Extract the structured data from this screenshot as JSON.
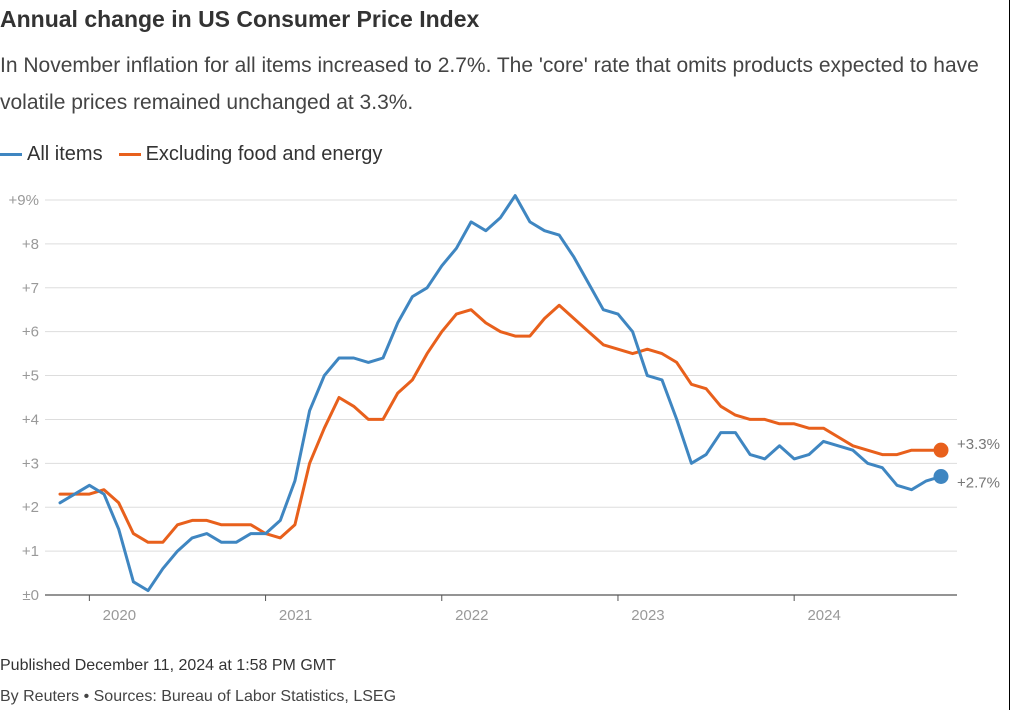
{
  "title": "Annual change in US Consumer Price Index",
  "subtitle": "In November inflation for all items increased to 2.7%. The 'core' rate that omits products expected to have volatile prices remained unchanged at 3.3%.",
  "footer": {
    "published": "Published December 11, 2024 at 1:58 PM GMT",
    "source": "By Reuters • Sources: Bureau of Labor Statistics, LSEG"
  },
  "chart_data": {
    "type": "line",
    "x_start": "2019-11",
    "x_end": "2024-11",
    "x_ticks": [
      {
        "date": "2020-01",
        "label": "2020"
      },
      {
        "date": "2021-01",
        "label": "2021"
      },
      {
        "date": "2022-01",
        "label": "2022"
      },
      {
        "date": "2023-01",
        "label": "2023"
      },
      {
        "date": "2024-01",
        "label": "2024"
      }
    ],
    "y_ticks": [
      {
        "value": 0,
        "label": "±0"
      },
      {
        "value": 1,
        "label": "+1"
      },
      {
        "value": 2,
        "label": "+2"
      },
      {
        "value": 3,
        "label": "+3"
      },
      {
        "value": 4,
        "label": "+4"
      },
      {
        "value": 5,
        "label": "+5"
      },
      {
        "value": 6,
        "label": "+6"
      },
      {
        "value": 7,
        "label": "+7"
      },
      {
        "value": 8,
        "label": "+8"
      },
      {
        "value": 9,
        "label": "+9%"
      }
    ],
    "ylim": [
      0,
      9
    ],
    "grid": true,
    "legend_position": "top-left",
    "series": [
      {
        "name": "All items",
        "color": "#3f86c1",
        "end_label": "+2.7%",
        "values": [
          2.1,
          2.3,
          2.5,
          2.3,
          1.5,
          0.3,
          0.1,
          0.6,
          1.0,
          1.3,
          1.4,
          1.2,
          1.2,
          1.4,
          1.4,
          1.7,
          2.6,
          4.2,
          5.0,
          5.4,
          5.4,
          5.3,
          5.4,
          6.2,
          6.8,
          7.0,
          7.5,
          7.9,
          8.5,
          8.3,
          8.6,
          9.1,
          8.5,
          8.3,
          8.2,
          7.7,
          7.1,
          6.5,
          6.4,
          6.0,
          5.0,
          4.9,
          4.0,
          3.0,
          3.2,
          3.7,
          3.7,
          3.2,
          3.1,
          3.4,
          3.1,
          3.2,
          3.5,
          3.4,
          3.3,
          3.0,
          2.9,
          2.5,
          2.4,
          2.6,
          2.7
        ]
      },
      {
        "name": "Excluding food and energy",
        "color": "#e8601c",
        "end_label": "+3.3%",
        "values": [
          2.3,
          2.3,
          2.3,
          2.4,
          2.1,
          1.4,
          1.2,
          1.2,
          1.6,
          1.7,
          1.7,
          1.6,
          1.6,
          1.6,
          1.4,
          1.3,
          1.6,
          3.0,
          3.8,
          4.5,
          4.3,
          4.0,
          4.0,
          4.6,
          4.9,
          5.5,
          6.0,
          6.4,
          6.5,
          6.2,
          6.0,
          5.9,
          5.9,
          6.3,
          6.6,
          6.3,
          6.0,
          5.7,
          5.6,
          5.5,
          5.6,
          5.5,
          5.3,
          4.8,
          4.7,
          4.3,
          4.1,
          4.0,
          4.0,
          3.9,
          3.9,
          3.8,
          3.8,
          3.6,
          3.4,
          3.3,
          3.2,
          3.2,
          3.3,
          3.3,
          3.3
        ]
      }
    ]
  }
}
